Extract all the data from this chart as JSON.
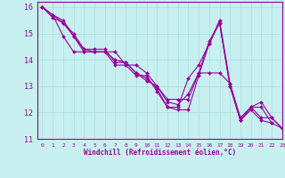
{
  "background_color": "#c8f0f0",
  "line_color": "#990099",
  "marker_color": "#990099",
  "xlabel": "Windchill (Refroidissement éolien,°C)",
  "xlim": [
    -0.5,
    23
  ],
  "ylim": [
    11,
    16.2
  ],
  "xticks": [
    0,
    1,
    2,
    3,
    4,
    5,
    6,
    7,
    8,
    9,
    10,
    11,
    12,
    13,
    14,
    15,
    16,
    17,
    18,
    19,
    20,
    21,
    22,
    23
  ],
  "yticks": [
    11,
    12,
    13,
    14,
    15,
    16
  ],
  "grid_color": "#aadcdc",
  "series": [
    {
      "x": [
        0,
        1,
        2,
        3,
        4,
        5,
        6,
        7,
        8,
        9,
        10,
        11,
        12,
        13,
        14,
        15,
        16,
        17,
        18,
        19,
        20,
        21,
        22
      ],
      "y": [
        16.0,
        15.6,
        15.4,
        15.0,
        14.4,
        14.4,
        14.4,
        13.9,
        13.9,
        13.5,
        13.3,
        12.9,
        12.2,
        12.2,
        13.3,
        13.8,
        14.6,
        15.4,
        13.0,
        11.7,
        12.1,
        11.7,
        11.6
      ]
    },
    {
      "x": [
        0,
        1,
        2,
        3,
        4,
        5,
        6,
        7,
        8,
        9,
        10,
        11,
        12,
        13,
        14,
        15,
        16,
        17,
        18,
        19,
        20,
        21,
        22,
        23
      ],
      "y": [
        16.0,
        15.7,
        15.5,
        14.9,
        14.4,
        14.3,
        14.3,
        14.0,
        13.9,
        13.5,
        13.2,
        13.0,
        12.4,
        12.3,
        12.7,
        13.5,
        14.7,
        15.4,
        13.0,
        11.7,
        12.2,
        12.2,
        11.6,
        11.4
      ]
    },
    {
      "x": [
        0,
        1,
        2,
        3,
        4,
        5,
        6,
        7,
        8,
        9,
        10,
        11,
        12,
        13,
        14,
        15,
        16,
        17,
        18,
        19,
        20,
        21,
        22,
        23
      ],
      "y": [
        16.0,
        15.7,
        14.9,
        14.3,
        14.3,
        14.3,
        14.3,
        13.8,
        13.8,
        13.4,
        13.4,
        12.8,
        12.2,
        12.1,
        12.1,
        13.4,
        14.6,
        15.5,
        13.1,
        11.8,
        12.2,
        12.4,
        11.8,
        11.4
      ]
    },
    {
      "x": [
        0,
        1,
        2,
        3,
        4,
        5,
        6,
        7,
        8,
        9,
        10,
        11,
        12,
        13,
        14,
        15,
        16,
        17,
        18,
        19,
        20,
        21,
        22,
        23
      ],
      "y": [
        16.0,
        15.7,
        15.4,
        14.9,
        14.3,
        14.3,
        14.3,
        14.3,
        13.8,
        13.8,
        13.5,
        13.0,
        12.5,
        12.5,
        12.5,
        13.5,
        13.5,
        13.5,
        13.1,
        11.7,
        12.2,
        11.8,
        11.8,
        11.4
      ]
    }
  ]
}
